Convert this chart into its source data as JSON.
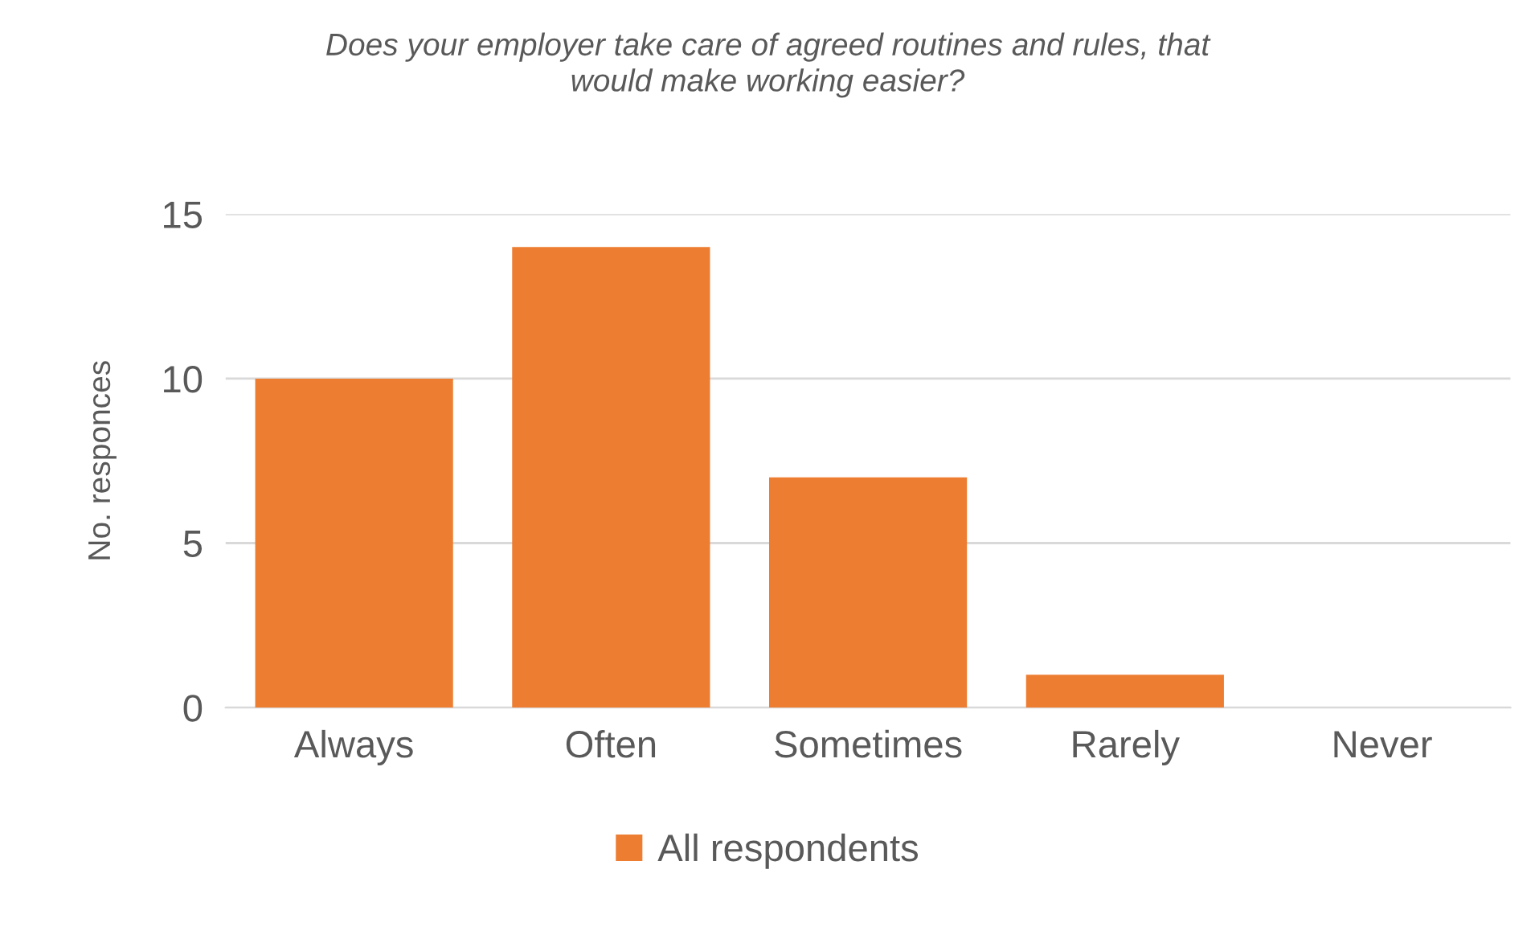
{
  "chart_data": {
    "type": "bar",
    "title": "Does your employer take care of agreed routines and rules, that\nwould make working easier?",
    "ylabel": "No. responces",
    "categories": [
      "Always",
      "Often",
      "Sometimes",
      "Rarely",
      "Never"
    ],
    "series": [
      {
        "name": "All respondents",
        "color": "#ed7d31",
        "values": [
          10,
          14,
          7,
          1,
          0
        ]
      }
    ],
    "ylim": [
      0,
      15
    ],
    "yticks": [
      0,
      5,
      10,
      15
    ],
    "grid": "y",
    "legend": "bottom"
  }
}
